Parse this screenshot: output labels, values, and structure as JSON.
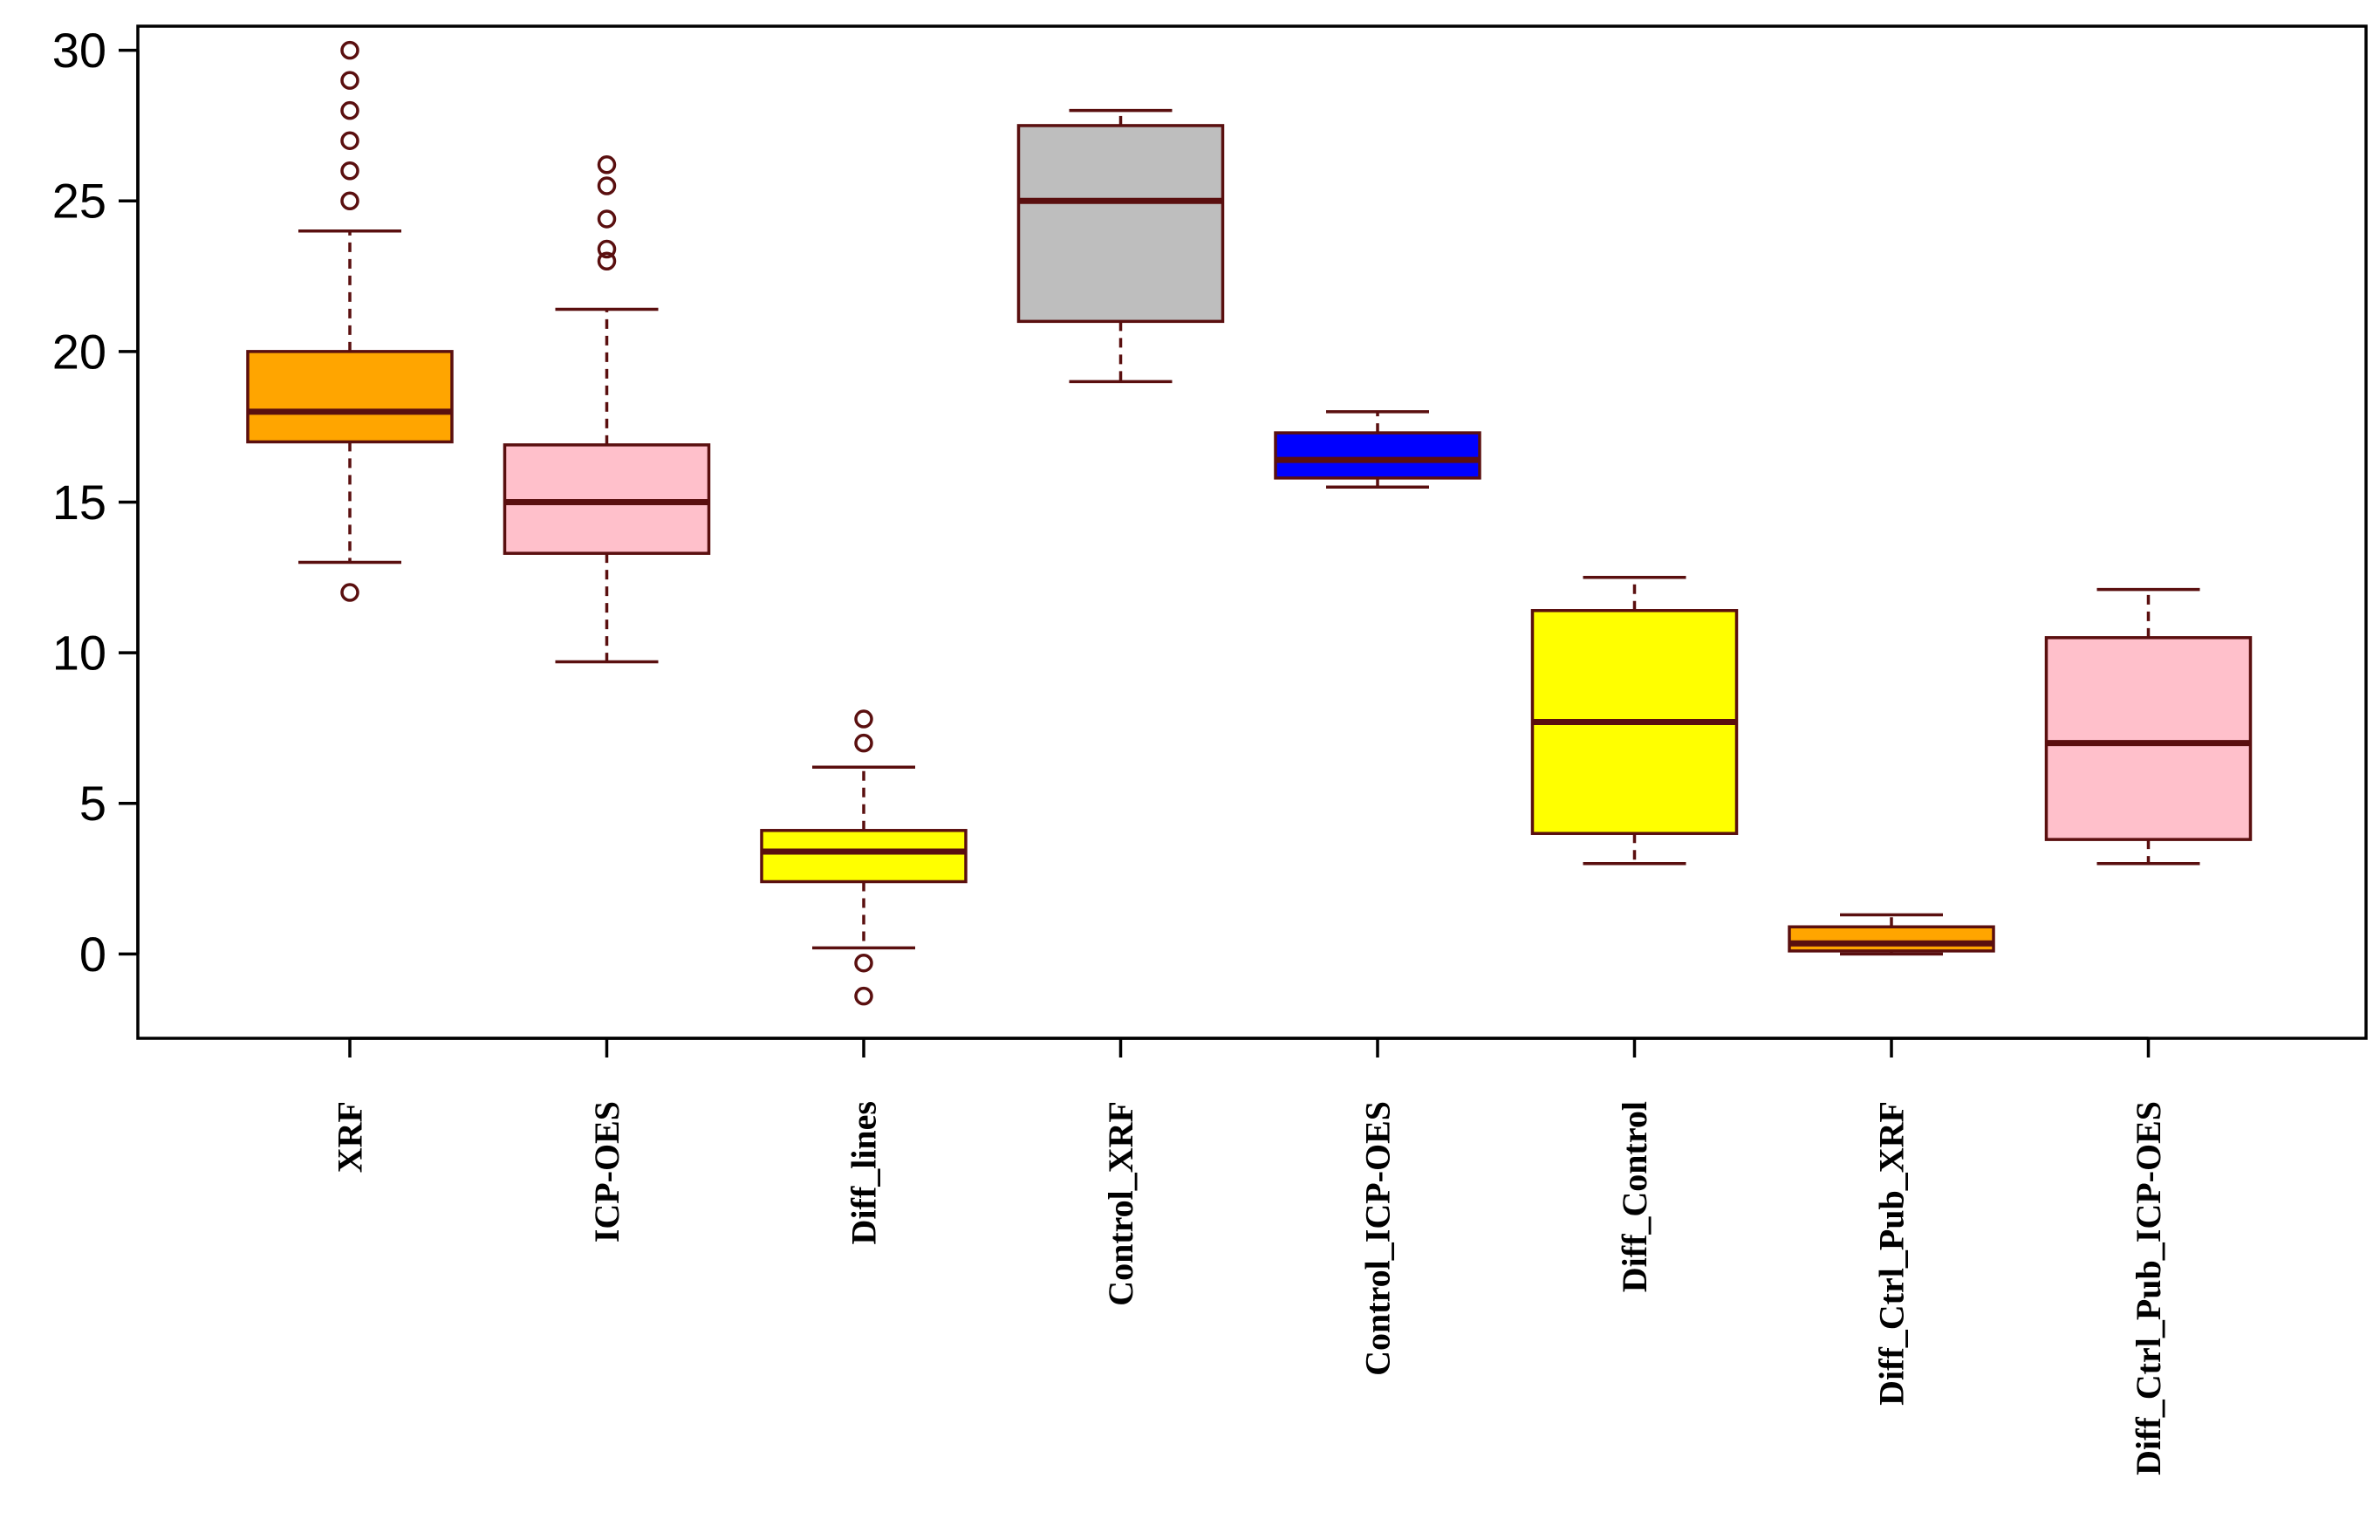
{
  "chart_data": {
    "type": "boxplot",
    "title": "",
    "xlabel": "",
    "ylabel": "",
    "ylim": [
      -2.8,
      30.8
    ],
    "yticks": [
      0,
      5,
      10,
      15,
      20,
      25,
      30
    ],
    "grid": false,
    "colors": {
      "outline": "#5a0f0f",
      "median": "#5a0f0f",
      "outlier": "#5a0f0f"
    },
    "categories": [
      "XRF",
      "ICP-OES",
      "Diff_lines",
      "Control_XRF",
      "Control_ICP-OES",
      "Diff_Control",
      "Diff_Ctrl_Pub_XRF",
      "Diff_Ctrl_Pub_ICP-OES"
    ],
    "boxes": [
      {
        "name": "XRF",
        "color": "#FFA500",
        "whisker_low": 13.0,
        "q1": 17.0,
        "median": 18.0,
        "q3": 20.0,
        "whisker_high": 24.0,
        "outliers": [
          12.0,
          25.0,
          26.0,
          27.0,
          28.0,
          29.0,
          30.0
        ]
      },
      {
        "name": "ICP-OES",
        "color": "#FFC0CB",
        "whisker_low": 9.7,
        "q1": 13.3,
        "median": 15.0,
        "q3": 16.9,
        "whisker_high": 21.4,
        "outliers": [
          23.0,
          23.4,
          24.4,
          25.5,
          26.2
        ]
      },
      {
        "name": "Diff_lines",
        "color": "#FFFF00",
        "whisker_low": 0.2,
        "q1": 2.4,
        "median": 3.4,
        "q3": 4.1,
        "whisker_high": 6.2,
        "outliers": [
          -1.4,
          -0.3,
          7.0,
          7.8
        ]
      },
      {
        "name": "Control_XRF",
        "color": "#BEBEBE",
        "whisker_low": 19.0,
        "q1": 21.0,
        "median": 25.0,
        "q3": 27.5,
        "whisker_high": 28.0,
        "outliers": []
      },
      {
        "name": "Control_ICP-OES",
        "color": "#0000FF",
        "whisker_low": 15.5,
        "q1": 15.8,
        "median": 16.4,
        "q3": 17.3,
        "whisker_high": 18.0,
        "outliers": []
      },
      {
        "name": "Diff_Control",
        "color": "#FFFF00",
        "whisker_low": 3.0,
        "q1": 4.0,
        "median": 7.7,
        "q3": 11.4,
        "whisker_high": 12.5,
        "outliers": []
      },
      {
        "name": "Diff_Ctrl_Pub_XRF",
        "color": "#FFA500",
        "whisker_low": 0.0,
        "q1": 0.1,
        "median": 0.35,
        "q3": 0.9,
        "whisker_high": 1.3,
        "outliers": []
      },
      {
        "name": "Diff_Ctrl_Pub_ICP-OES",
        "color": "#FFC0CB",
        "whisker_low": 3.0,
        "q1": 3.8,
        "median": 7.0,
        "q3": 10.5,
        "whisker_high": 12.1,
        "outliers": []
      }
    ]
  }
}
